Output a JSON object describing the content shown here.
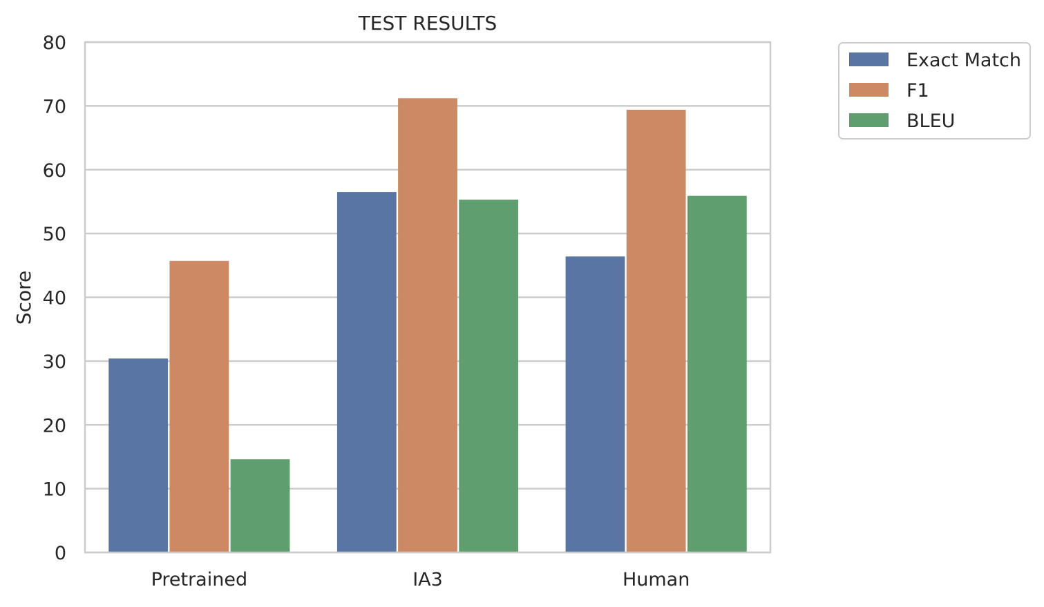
{
  "chart_data": {
    "type": "bar",
    "title": "TEST RESULTS",
    "xlabel": "",
    "ylabel": "Score",
    "ylim": [
      0,
      80
    ],
    "yticks": [
      0,
      10,
      20,
      30,
      40,
      50,
      60,
      70,
      80
    ],
    "categories": [
      "Pretrained",
      "IA3",
      "Human"
    ],
    "series": [
      {
        "name": "Exact Match",
        "color": "#5875a4",
        "values": [
          30.4,
          56.5,
          46.4
        ]
      },
      {
        "name": "F1",
        "color": "#cc8963",
        "values": [
          45.7,
          71.2,
          69.4
        ]
      },
      {
        "name": "BLEU",
        "color": "#5f9e6e",
        "values": [
          14.6,
          55.3,
          55.9
        ]
      }
    ],
    "grid": true,
    "legend_position": "outside-top-right"
  }
}
